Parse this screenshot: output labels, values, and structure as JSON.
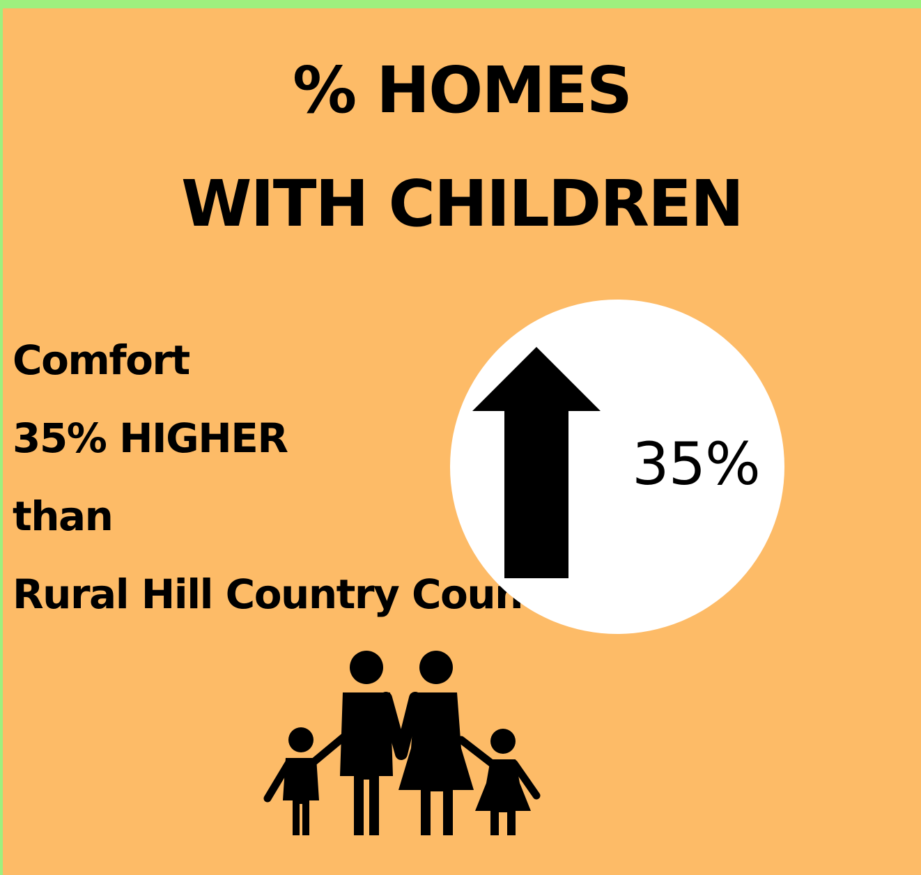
{
  "title": {
    "line1": "% HOMES",
    "line2": "WITH CHILDREN"
  },
  "comparison": {
    "line1": "Comfort",
    "line2": "35% HIGHER",
    "line3": "than",
    "line4": "Rural Hill Country Counties"
  },
  "badge": {
    "value_label": "35%",
    "arrow": "up-arrow-icon"
  },
  "illustration": {
    "icon": "family-icon"
  },
  "colors": {
    "background": "#fdbb67",
    "frame": "#9ef07e",
    "badge": "#ffffff",
    "ink": "#000000"
  }
}
